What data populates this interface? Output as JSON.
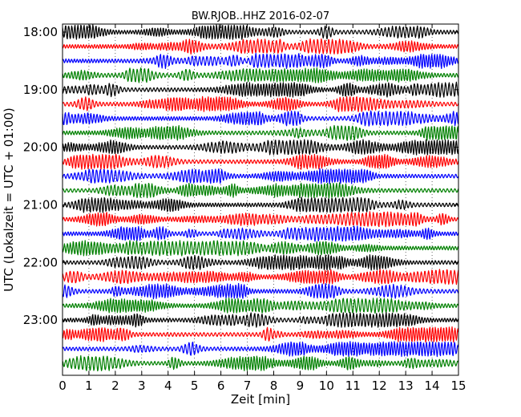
{
  "chart_data": {
    "type": "line",
    "title": "BW.RJOB..HHZ 2016-02-07",
    "xlabel": "Zeit  [min]",
    "ylabel": "UTC (Lokalzeit = UTC + 01:00)",
    "xlim": [
      0,
      15
    ],
    "x_ticks": [
      "0",
      "1",
      "2",
      "3",
      "4",
      "5",
      "6",
      "7",
      "8",
      "9",
      "10",
      "11",
      "12",
      "13",
      "14",
      "15"
    ],
    "y_tick_labels": [
      "18:00",
      "19:00",
      "20:00",
      "21:00",
      "22:00",
      "23:00"
    ],
    "trace_start_times": [
      "18:00",
      "18:15",
      "18:30",
      "18:45",
      "19:00",
      "19:15",
      "19:30",
      "19:45",
      "20:00",
      "20:15",
      "20:30",
      "20:45",
      "21:00",
      "21:15",
      "21:30",
      "21:45",
      "22:00",
      "22:15",
      "22:30",
      "22:45",
      "23:00",
      "23:15",
      "23:30",
      "23:45"
    ],
    "trace_interval_min": 15,
    "trace_colors": [
      "#000000",
      "#ff0000",
      "#0000ff",
      "#008000"
    ],
    "grid": "vertical dotted lines at each minute",
    "legend": "none"
  }
}
